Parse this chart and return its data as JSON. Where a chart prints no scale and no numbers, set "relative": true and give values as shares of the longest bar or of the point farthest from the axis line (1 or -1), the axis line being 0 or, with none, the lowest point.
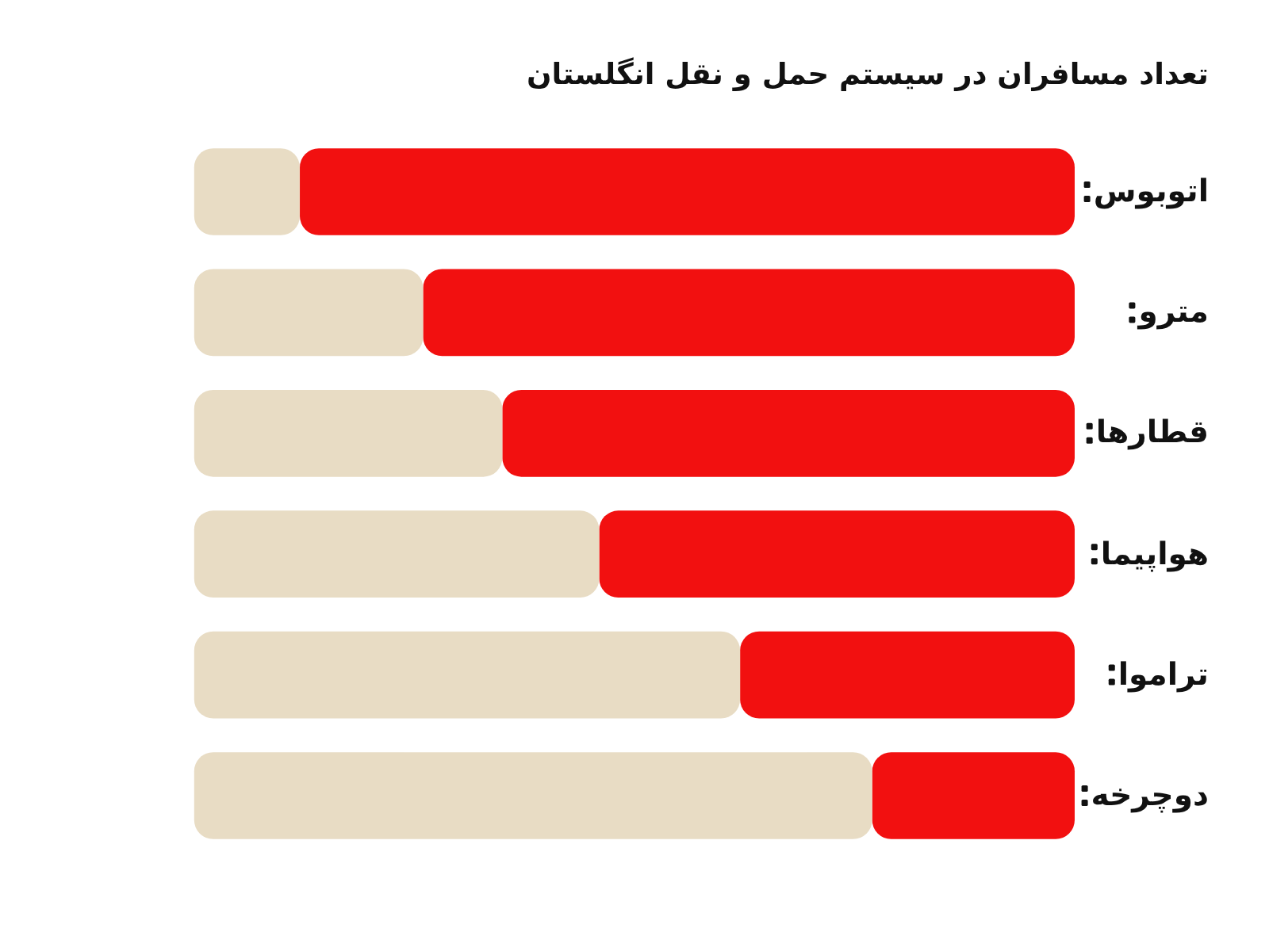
{
  "chart_data": {
    "type": "bar",
    "orientation": "horizontal",
    "stacked": true,
    "relative": true,
    "title": "تعداد مسافران در سیستم حمل و نقل انگلستان",
    "categories": [
      "اتوبوس",
      "مترو",
      "قطارها",
      "هواپیما",
      "تراموا",
      "دوچرخه"
    ],
    "series": [
      {
        "color": "#f21010",
        "values": [
          0.88,
          0.74,
          0.65,
          0.54,
          0.38,
          0.23
        ]
      },
      {
        "color": "#e8dcc4",
        "values": [
          0.12,
          0.26,
          0.35,
          0.46,
          0.62,
          0.77
        ]
      }
    ]
  }
}
